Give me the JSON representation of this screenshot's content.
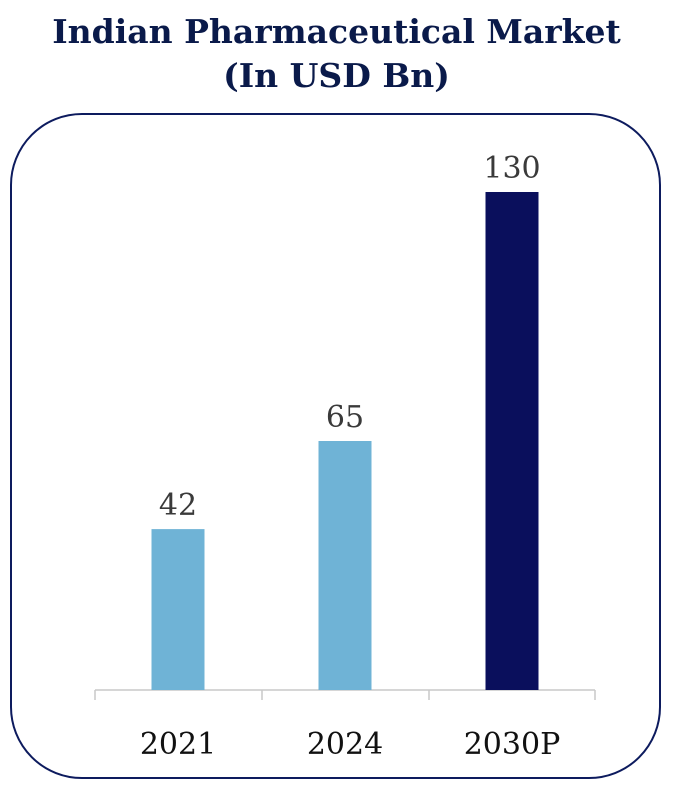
{
  "chart_data": {
    "type": "bar",
    "title_line1": "Indian Pharmaceutical Market",
    "title_line2": "(In USD Bn)",
    "categories": [
      "2021",
      "2024",
      "2030P"
    ],
    "values": [
      42,
      65,
      130
    ],
    "data_labels": [
      "42",
      "65",
      "130"
    ],
    "bar_colors": [
      "#6fb3d6",
      "#6fb3d6",
      "#0a0f5c"
    ],
    "ylim": [
      0,
      130
    ],
    "xlabel": "",
    "ylabel": "",
    "grid": false,
    "legend": "none"
  }
}
